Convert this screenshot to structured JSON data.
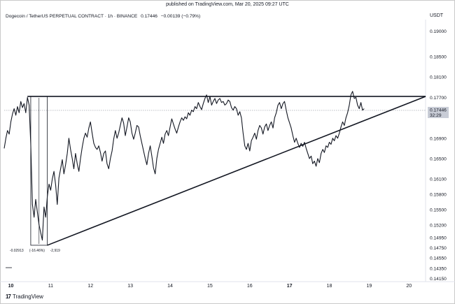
{
  "header": {
    "published": "published on TradingView.com, Mar 20, 2025 09:27 UTC",
    "symbol": "Dogecoin / TetherUS PERPETUAL CONTRACT · 1h · BINANCE",
    "price": "0.17446",
    "change": "−0.00139 (−0.79%)",
    "currency": "USDT"
  },
  "footer": {
    "logo_text": "TradingView",
    "logo_mark": "17"
  },
  "price_tag": {
    "price": "0.17446",
    "countdown": "32:29",
    "color": "#c8ccd6"
  },
  "measure": {
    "left_label": "-0.02913",
    "pct_label": "(-16.46%)",
    "right_label": "-2,919"
  },
  "colors": {
    "line": "#131722",
    "grid": "#e0e3eb",
    "dotted": "#9598a1"
  },
  "chart_data": {
    "type": "line",
    "series_name": "",
    "x_labels": [
      "10",
      "11",
      "12",
      "13",
      "14",
      "15",
      "16",
      "17",
      "18",
      "19",
      "20"
    ],
    "x_label_positions": [
      0,
      24,
      48,
      72,
      96,
      120,
      144,
      168,
      192,
      216,
      240
    ],
    "y_ticks": [
      0.19,
      0.185,
      0.181,
      0.177,
      0.169,
      0.165,
      0.161,
      0.158,
      0.155,
      0.152,
      0.1495,
      0.1475,
      0.1455,
      0.1435,
      0.1415
    ],
    "y_tick_labels": [
      "0.19000",
      "0.18500",
      "0.18100",
      "0.17700",
      "0.16900",
      "0.16500",
      "0.16100",
      "0.15800",
      "0.15500",
      "0.15200",
      "0.14950",
      "0.14750",
      "0.14550",
      "0.14350",
      "0.14150"
    ],
    "x_range": [
      -4,
      250
    ],
    "price_series": [
      [
        -4,
        0.167
      ],
      [
        -3,
        0.169
      ],
      [
        -2,
        0.1705
      ],
      [
        -1,
        0.1698
      ],
      [
        0,
        0.1722
      ],
      [
        1,
        0.1738
      ],
      [
        2,
        0.1748
      ],
      [
        3,
        0.1735
      ],
      [
        4,
        0.1752
      ],
      [
        5,
        0.174
      ],
      [
        6,
        0.1762
      ],
      [
        7,
        0.175
      ],
      [
        8,
        0.1758
      ],
      [
        9,
        0.174
      ],
      [
        10,
        0.177
      ],
      [
        11,
        0.1755
      ],
      [
        12,
        0.168
      ],
      [
        13,
        0.156
      ],
      [
        14,
        0.1535
      ],
      [
        15,
        0.157
      ],
      [
        16,
        0.1545
      ],
      [
        17,
        0.152
      ],
      [
        18,
        0.1505
      ],
      [
        19,
        0.149
      ],
      [
        20,
        0.1555
      ],
      [
        21,
        0.1535
      ],
      [
        22,
        0.1575
      ],
      [
        23,
        0.16
      ],
      [
        24,
        0.1588
      ],
      [
        25,
        0.161
      ],
      [
        26,
        0.1625
      ],
      [
        27,
        0.1598
      ],
      [
        28,
        0.156
      ],
      [
        29,
        0.1612
      ],
      [
        30,
        0.163
      ],
      [
        31,
        0.1648
      ],
      [
        32,
        0.162
      ],
      [
        33,
        0.1638
      ],
      [
        34,
        0.166
      ],
      [
        35,
        0.169
      ],
      [
        36,
        0.1668
      ],
      [
        37,
        0.165
      ],
      [
        38,
        0.163
      ],
      [
        39,
        0.166
      ],
      [
        40,
        0.164
      ],
      [
        41,
        0.1625
      ],
      [
        42,
        0.165
      ],
      [
        43,
        0.1672
      ],
      [
        44,
        0.169
      ],
      [
        45,
        0.17
      ],
      [
        46,
        0.1692
      ],
      [
        47,
        0.171
      ],
      [
        48,
        0.1722
      ],
      [
        49,
        0.17
      ],
      [
        50,
        0.168
      ],
      [
        51,
        0.1672
      ],
      [
        52,
        0.1668
      ],
      [
        53,
        0.1675
      ],
      [
        54,
        0.1662
      ],
      [
        55,
        0.1645
      ],
      [
        56,
        0.166
      ],
      [
        57,
        0.1665
      ],
      [
        58,
        0.164
      ],
      [
        59,
        0.163
      ],
      [
        60,
        0.165
      ],
      [
        61,
        0.1665
      ],
      [
        62,
        0.1688
      ],
      [
        63,
        0.1705
      ],
      [
        64,
        0.169
      ],
      [
        65,
        0.17
      ],
      [
        66,
        0.1715
      ],
      [
        67,
        0.173
      ],
      [
        68,
        0.172
      ],
      [
        69,
        0.1695
      ],
      [
        70,
        0.1712
      ],
      [
        71,
        0.173
      ],
      [
        72,
        0.1722
      ],
      [
        73,
        0.17
      ],
      [
        74,
        0.1688
      ],
      [
        75,
        0.17
      ],
      [
        76,
        0.1715
      ],
      [
        77,
        0.1712
      ],
      [
        78,
        0.1695
      ],
      [
        79,
        0.168
      ],
      [
        80,
        0.1665
      ],
      [
        81,
        0.165
      ],
      [
        82,
        0.1638
      ],
      [
        83,
        0.166
      ],
      [
        84,
        0.1675
      ],
      [
        85,
        0.1655
      ],
      [
        86,
        0.1632
      ],
      [
        87,
        0.162
      ],
      [
        88,
        0.165
      ],
      [
        89,
        0.1668
      ],
      [
        90,
        0.168
      ],
      [
        91,
        0.1692
      ],
      [
        92,
        0.168
      ],
      [
        93,
        0.1698
      ],
      [
        94,
        0.1705
      ],
      [
        95,
        0.1695
      ],
      [
        96,
        0.1712
      ],
      [
        97,
        0.1728
      ],
      [
        98,
        0.1718
      ],
      [
        99,
        0.1708
      ],
      [
        100,
        0.17
      ],
      [
        101,
        0.1712
      ],
      [
        102,
        0.1722
      ],
      [
        103,
        0.173
      ],
      [
        104,
        0.1725
      ],
      [
        105,
        0.1732
      ],
      [
        106,
        0.1728
      ],
      [
        107,
        0.174
      ],
      [
        108,
        0.1735
      ],
      [
        109,
        0.1745
      ],
      [
        110,
        0.1742
      ],
      [
        111,
        0.1752
      ],
      [
        112,
        0.1748
      ],
      [
        113,
        0.176
      ],
      [
        114,
        0.1752
      ],
      [
        115,
        0.1746
      ],
      [
        116,
        0.1758
      ],
      [
        117,
        0.1768
      ],
      [
        118,
        0.1775
      ],
      [
        119,
        0.176
      ],
      [
        120,
        0.1772
      ],
      [
        121,
        0.1755
      ],
      [
        122,
        0.1762
      ],
      [
        123,
        0.1768
      ],
      [
        124,
        0.1758
      ],
      [
        125,
        0.1765
      ],
      [
        126,
        0.1768
      ],
      [
        127,
        0.176
      ],
      [
        128,
        0.1762
      ],
      [
        129,
        0.1755
      ],
      [
        130,
        0.1758
      ],
      [
        131,
        0.1765
      ],
      [
        132,
        0.1762
      ],
      [
        133,
        0.175
      ],
      [
        134,
        0.1745
      ],
      [
        135,
        0.1752
      ],
      [
        136,
        0.1748
      ],
      [
        137,
        0.1735
      ],
      [
        138,
        0.1742
      ],
      [
        139,
        0.173
      ],
      [
        140,
        0.17
      ],
      [
        141,
        0.1675
      ],
      [
        142,
        0.1668
      ],
      [
        143,
        0.168
      ],
      [
        144,
        0.1665
      ],
      [
        145,
        0.1685
      ],
      [
        146,
        0.1692
      ],
      [
        147,
        0.17
      ],
      [
        148,
        0.1688
      ],
      [
        149,
        0.1705
      ],
      [
        150,
        0.1715
      ],
      [
        151,
        0.171
      ],
      [
        152,
        0.1698
      ],
      [
        153,
        0.1712
      ],
      [
        154,
        0.1718
      ],
      [
        155,
        0.1705
      ],
      [
        156,
        0.1715
      ],
      [
        157,
        0.1722
      ],
      [
        158,
        0.171
      ],
      [
        159,
        0.173
      ],
      [
        160,
        0.174
      ],
      [
        161,
        0.1755
      ],
      [
        162,
        0.176
      ],
      [
        163,
        0.1748
      ],
      [
        164,
        0.1758
      ],
      [
        165,
        0.1762
      ],
      [
        166,
        0.1745
      ],
      [
        167,
        0.173
      ],
      [
        168,
        0.172
      ],
      [
        169,
        0.171
      ],
      [
        170,
        0.1695
      ],
      [
        171,
        0.1682
      ],
      [
        172,
        0.169
      ],
      [
        173,
        0.168
      ],
      [
        174,
        0.1672
      ],
      [
        175,
        0.168
      ],
      [
        176,
        0.1674
      ],
      [
        177,
        0.1682
      ],
      [
        178,
        0.167
      ],
      [
        179,
        0.166
      ],
      [
        180,
        0.165
      ],
      [
        181,
        0.1655
      ],
      [
        182,
        0.164
      ],
      [
        183,
        0.1645
      ],
      [
        184,
        0.1635
      ],
      [
        185,
        0.165
      ],
      [
        186,
        0.1642
      ],
      [
        187,
        0.166
      ],
      [
        188,
        0.1668
      ],
      [
        189,
        0.1662
      ],
      [
        190,
        0.1675
      ],
      [
        191,
        0.1672
      ],
      [
        192,
        0.1682
      ],
      [
        193,
        0.1678
      ],
      [
        194,
        0.169
      ],
      [
        195,
        0.1685
      ],
      [
        196,
        0.1695
      ],
      [
        197,
        0.169
      ],
      [
        198,
        0.17
      ],
      [
        199,
        0.1712
      ],
      [
        200,
        0.1722
      ],
      [
        201,
        0.1715
      ],
      [
        202,
        0.173
      ],
      [
        203,
        0.174
      ],
      [
        204,
        0.1755
      ],
      [
        205,
        0.1775
      ],
      [
        206,
        0.1782
      ],
      [
        207,
        0.1768
      ],
      [
        208,
        0.177
      ],
      [
        209,
        0.1755
      ],
      [
        210,
        0.1748
      ],
      [
        211,
        0.176
      ],
      [
        212,
        0.1745
      ],
      [
        213,
        0.1748
      ]
    ],
    "annotations": {
      "horizontal_resistance": {
        "x": [
          10,
          250
        ],
        "y": 0.1772
      },
      "rising_support": {
        "x": [
          22,
          250
        ],
        "y": [
          0.148,
          0.1772
        ]
      },
      "measure_box": {
        "x": [
          12,
          22
        ],
        "y": [
          0.1772,
          0.148
        ]
      },
      "last_price_line": 0.17446,
      "price_label": "0.17446",
      "countdown_label": "32:29"
    },
    "xlabel": "",
    "ylabel": "USDT",
    "ylim": [
      0.141,
      0.192
    ],
    "grid": false
  }
}
